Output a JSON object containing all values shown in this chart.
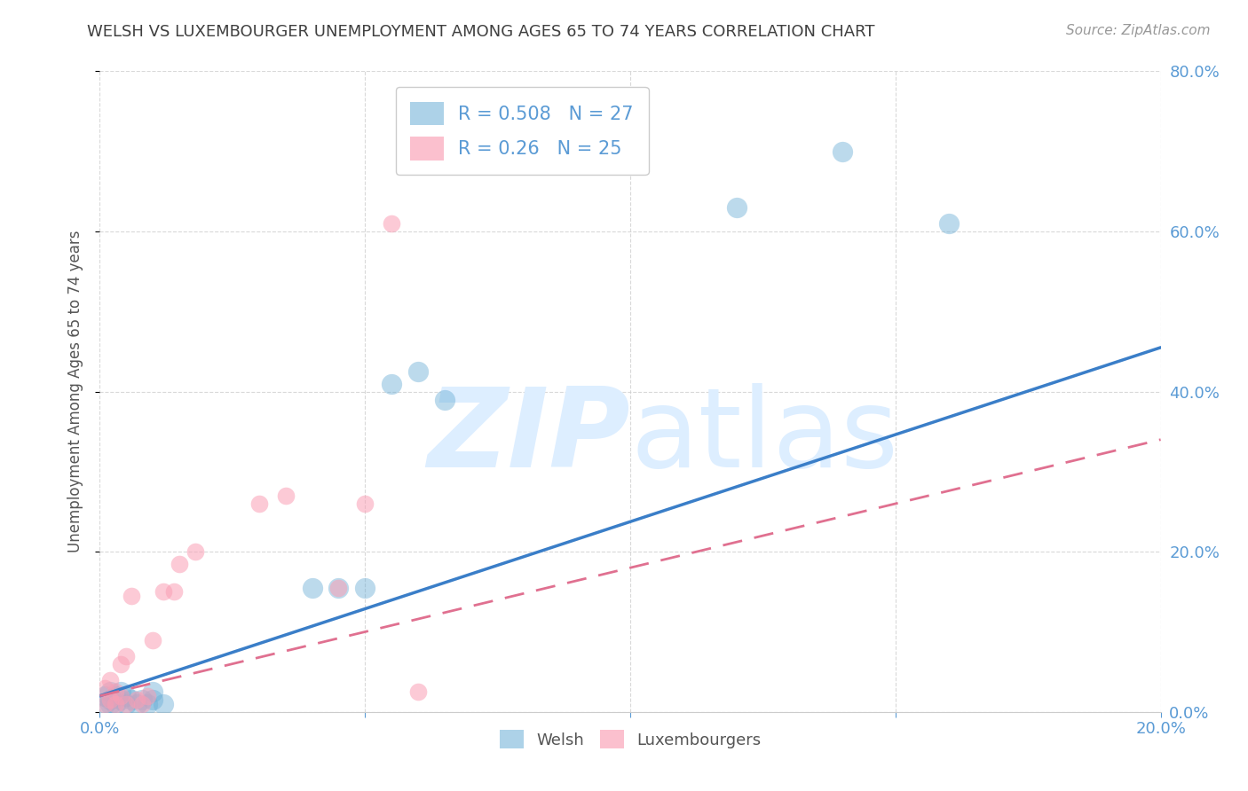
{
  "title": "WELSH VS LUXEMBOURGER UNEMPLOYMENT AMONG AGES 65 TO 74 YEARS CORRELATION CHART",
  "source": "Source: ZipAtlas.com",
  "ylabel": "Unemployment Among Ages 65 to 74 years",
  "xlim": [
    0.0,
    0.2
  ],
  "ylim": [
    0.0,
    0.8
  ],
  "xticks": [
    0.0,
    0.05,
    0.1,
    0.15,
    0.2
  ],
  "yticks": [
    0.0,
    0.2,
    0.4,
    0.6,
    0.8
  ],
  "welsh_color": "#6baed6",
  "luxembourger_color": "#fa9fb5",
  "welsh_r": 0.508,
  "welsh_n": 27,
  "luxembourger_r": 0.26,
  "luxembourger_n": 25,
  "welsh_x": [
    0.001,
    0.001,
    0.002,
    0.002,
    0.002,
    0.003,
    0.003,
    0.004,
    0.004,
    0.005,
    0.005,
    0.006,
    0.007,
    0.008,
    0.009,
    0.01,
    0.01,
    0.012,
    0.04,
    0.045,
    0.05,
    0.055,
    0.06,
    0.065,
    0.12,
    0.14,
    0.16
  ],
  "welsh_y": [
    0.01,
    0.02,
    0.01,
    0.015,
    0.025,
    0.01,
    0.02,
    0.015,
    0.025,
    0.01,
    0.02,
    0.015,
    0.01,
    0.015,
    0.01,
    0.015,
    0.025,
    0.01,
    0.155,
    0.155,
    0.155,
    0.41,
    0.425,
    0.39,
    0.63,
    0.7,
    0.61
  ],
  "luxembourger_x": [
    0.001,
    0.001,
    0.002,
    0.002,
    0.003,
    0.003,
    0.004,
    0.004,
    0.005,
    0.005,
    0.006,
    0.007,
    0.008,
    0.009,
    0.01,
    0.012,
    0.014,
    0.015,
    0.018,
    0.03,
    0.035,
    0.045,
    0.05,
    0.055,
    0.06
  ],
  "luxembourger_y": [
    0.01,
    0.03,
    0.015,
    0.04,
    0.01,
    0.025,
    0.02,
    0.06,
    0.01,
    0.07,
    0.145,
    0.015,
    0.01,
    0.02,
    0.09,
    0.15,
    0.15,
    0.185,
    0.2,
    0.26,
    0.27,
    0.155,
    0.26,
    0.61,
    0.025
  ],
  "welsh_trend_x": [
    0.0,
    0.2
  ],
  "welsh_trend_y": [
    0.02,
    0.455
  ],
  "lux_trend_x": [
    0.0,
    0.2
  ],
  "lux_trend_y": [
    0.02,
    0.34
  ],
  "background_color": "#ffffff",
  "grid_color": "#d0d0d0",
  "title_color": "#404040",
  "axis_tick_color": "#5b9bd5",
  "watermark_color": "#ddeeff"
}
